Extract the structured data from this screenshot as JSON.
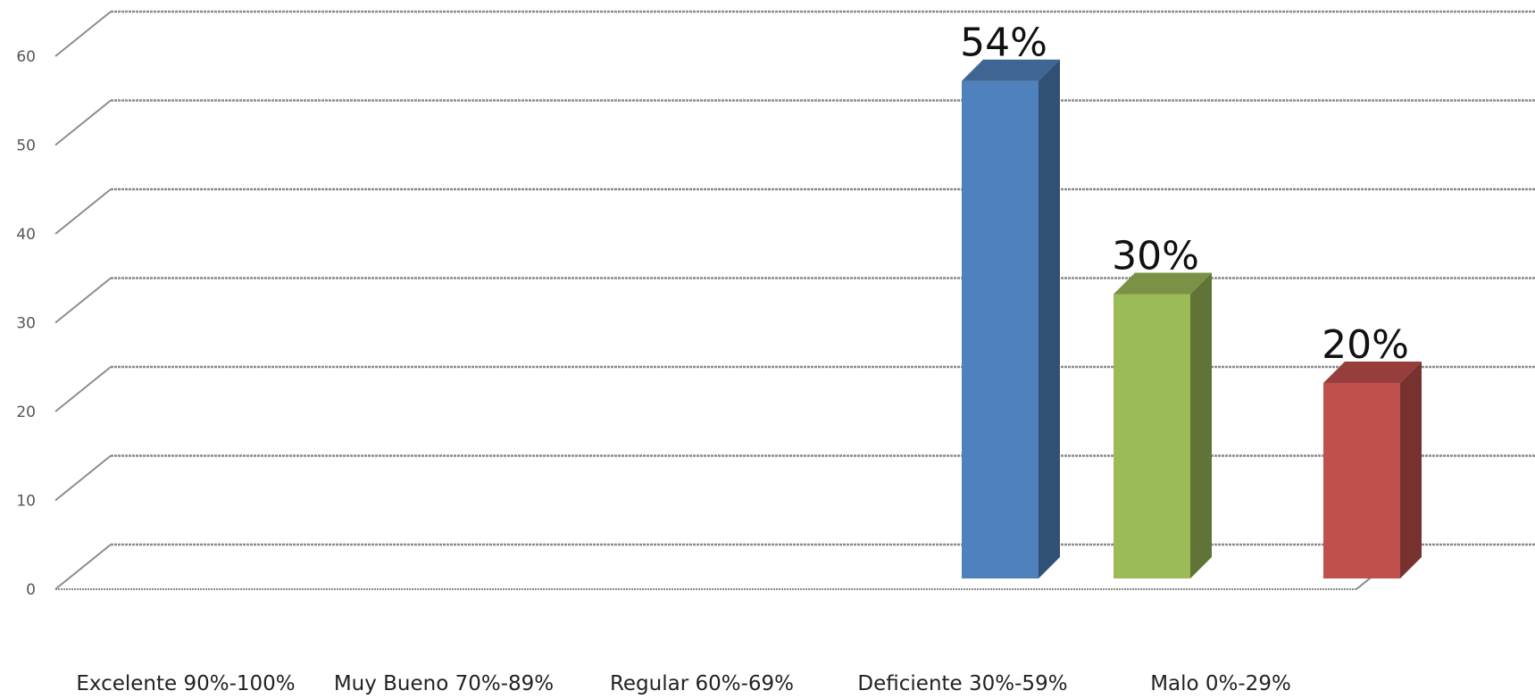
{
  "chart_data": {
    "type": "bar",
    "style": "3d-column",
    "title": "",
    "xlabel": "",
    "ylabel": "",
    "ylim": [
      0,
      60
    ],
    "yticks": [
      0,
      10,
      20,
      30,
      40,
      50,
      60
    ],
    "ytick_labels": [
      "0",
      "10",
      "20",
      "30",
      "40",
      "50",
      "60"
    ],
    "grid": true,
    "legend": "none",
    "categories": [
      "Excelente  90%-100%",
      "Muy Bueno 70%-89%",
      "Regular 60%-69%",
      "Deficiente 30%-59%",
      "Malo 0%-29%"
    ],
    "bars": [
      {
        "category": "Deficiente 30%-59%",
        "value": 54,
        "label": "54%",
        "color": "#4F81BD"
      },
      {
        "category": "Deficiente 30%-59%",
        "value": 30,
        "label": "30%",
        "color": "#9BBB59"
      },
      {
        "category": "Malo 0%-29%",
        "value": 20,
        "label": "20%",
        "color": "#C0504D"
      }
    ]
  }
}
